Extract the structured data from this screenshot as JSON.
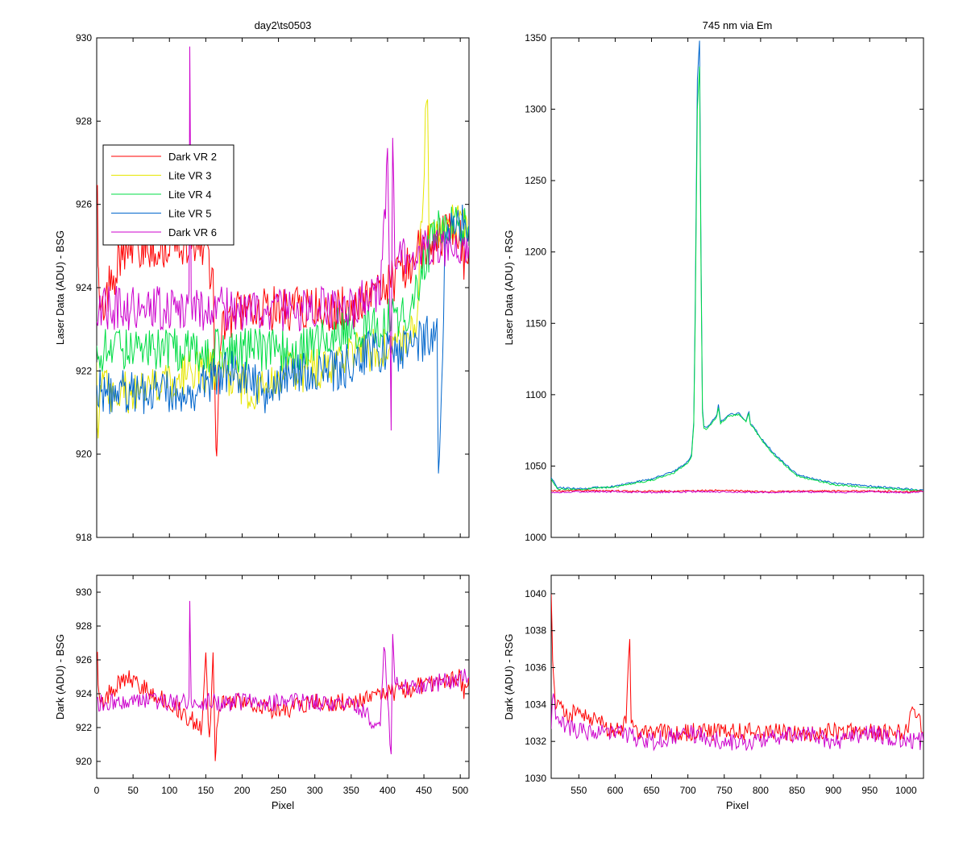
{
  "figure": {
    "colors": {
      "Dark VR 2": "#ff0000",
      "Lite VR 3": "#e6e600",
      "Lite VR 4": "#00dd44",
      "Lite VR 5": "#0066cc",
      "Dark VR 6": "#cc00cc"
    }
  },
  "chart_data": [
    {
      "id": "top-left",
      "type": "line",
      "title": "day2\\ts0503",
      "xlabel": "",
      "ylabel": "Laser Data (ADU) - BSG",
      "xlim": [
        0,
        512
      ],
      "ylim": [
        918,
        930
      ],
      "xticks": [
        0,
        50,
        100,
        150,
        200,
        250,
        300,
        350,
        400,
        450,
        500
      ],
      "show_xticklabels": false,
      "yticks": [
        918,
        920,
        922,
        924,
        926,
        928,
        930
      ],
      "legend": {
        "placement": "upper-left",
        "entries": [
          "Dark VR 2",
          "Lite VR 3",
          "Lite VR 4",
          "Lite VR 5",
          "Dark VR 6"
        ]
      },
      "series": [
        {
          "name": "Dark VR 2",
          "x": [
            0,
            2,
            3,
            5,
            40,
            100,
            150,
            160,
            163,
            165,
            170,
            200,
            250,
            300,
            350,
            400,
            450,
            460,
            500,
            505,
            512
          ],
          "y": [
            927,
            925,
            924,
            923.5,
            925,
            925,
            925,
            924,
            921,
            920,
            923,
            923.5,
            923.5,
            923.5,
            923.5,
            924,
            925,
            925,
            925.5,
            924.5,
            925
          ]
        },
        {
          "name": "Lite VR 3",
          "x": [
            0,
            2,
            5,
            30,
            80,
            130,
            170,
            220,
            260,
            300,
            350,
            400,
            440,
            455,
            457,
            480,
            512
          ],
          "y": [
            922,
            920,
            921.5,
            921.5,
            921.5,
            922,
            922,
            921.5,
            922,
            922,
            922.5,
            922.5,
            923,
            929,
            925,
            925.5,
            925.5
          ]
        },
        {
          "name": "Lite VR 4",
          "x": [
            0,
            30,
            80,
            130,
            180,
            230,
            280,
            330,
            380,
            430,
            470,
            512
          ],
          "y": [
            922.5,
            922.5,
            922.5,
            922.5,
            922.5,
            922.5,
            922.5,
            923,
            923,
            923.5,
            925.5,
            925.5
          ]
        },
        {
          "name": "Lite VR 5",
          "x": [
            0,
            30,
            80,
            130,
            180,
            230,
            280,
            330,
            380,
            430,
            468,
            470,
            480,
            512
          ],
          "y": [
            921.5,
            921.5,
            921.5,
            921.5,
            922,
            921.5,
            922,
            922,
            922.5,
            922.5,
            923,
            919,
            925.5,
            925.5
          ]
        },
        {
          "name": "Dark VR 6",
          "x": [
            0,
            50,
            100,
            127,
            128,
            130,
            200,
            250,
            300,
            350,
            390,
            400,
            405,
            407,
            410,
            450,
            512
          ],
          "y": [
            923.5,
            923.5,
            923.5,
            923.5,
            930,
            923.5,
            923.5,
            923.5,
            923.5,
            923.5,
            924,
            927,
            921,
            928,
            924.5,
            925,
            925
          ]
        }
      ]
    },
    {
      "id": "top-right",
      "type": "line",
      "title": "745 nm via Em",
      "xlabel": "",
      "ylabel": "Laser Data (ADU) - RSG",
      "xlim": [
        512,
        1024
      ],
      "ylim": [
        1000,
        1350
      ],
      "xticks": [
        550,
        600,
        650,
        700,
        750,
        800,
        850,
        900,
        950,
        1000
      ],
      "show_xticklabels": false,
      "yticks": [
        1000,
        1050,
        1100,
        1150,
        1200,
        1250,
        1300,
        1350
      ],
      "series": [
        {
          "name": "Lite VR 5",
          "x": [
            512,
            520,
            550,
            600,
            650,
            680,
            700,
            705,
            708,
            710,
            713,
            716,
            718,
            720,
            722,
            725,
            730,
            740,
            742,
            745,
            750,
            755,
            770,
            775,
            780,
            784,
            786,
            790,
            800,
            820,
            850,
            900,
            950,
            1000,
            1024
          ],
          "y": [
            1042,
            1035,
            1034,
            1036,
            1041,
            1046,
            1053,
            1058,
            1080,
            1160,
            1320,
            1348,
            1200,
            1090,
            1078,
            1077,
            1079,
            1086,
            1093,
            1081,
            1083,
            1086,
            1087,
            1084,
            1082,
            1088,
            1080,
            1078,
            1070,
            1058,
            1044,
            1038,
            1036,
            1034,
            1033
          ]
        },
        {
          "name": "Lite VR 4",
          "x": [
            512,
            520,
            550,
            600,
            650,
            680,
            700,
            705,
            708,
            710,
            713,
            716,
            718,
            720,
            722,
            725,
            730,
            740,
            742,
            745,
            750,
            755,
            770,
            775,
            780,
            784,
            786,
            790,
            800,
            820,
            850,
            900,
            950,
            1000,
            1024
          ],
          "y": [
            1041,
            1034,
            1033.5,
            1035.5,
            1040,
            1045,
            1052,
            1057,
            1078,
            1150,
            1300,
            1330,
            1190,
            1088,
            1077,
            1076,
            1078,
            1085,
            1091,
            1080,
            1082,
            1085,
            1086,
            1083,
            1081,
            1087,
            1079,
            1077,
            1069,
            1057,
            1043,
            1037,
            1035,
            1033.5,
            1032.5
          ]
        },
        {
          "name": "Dark VR 2",
          "x": [
            512,
            520,
            550,
            600,
            650,
            700,
            750,
            800,
            850,
            900,
            950,
            1000,
            1024
          ],
          "y": [
            1033,
            1032.5,
            1033,
            1032.5,
            1032.5,
            1032.5,
            1033,
            1032,
            1032.5,
            1032.5,
            1032.5,
            1032,
            1032.5
          ]
        },
        {
          "name": "Dark VR 6",
          "x": [
            512,
            520,
            550,
            600,
            650,
            700,
            750,
            800,
            850,
            900,
            950,
            1000,
            1024
          ],
          "y": [
            1032,
            1031.5,
            1032,
            1032,
            1031.5,
            1032,
            1032,
            1031.5,
            1032,
            1031.5,
            1032,
            1031.5,
            1032
          ]
        }
      ]
    },
    {
      "id": "bottom-left",
      "type": "line",
      "title": "",
      "xlabel": "Pixel",
      "ylabel": "Dark (ADU) - BSG",
      "xlim": [
        0,
        512
      ],
      "ylim": [
        919,
        931
      ],
      "xticks": [
        0,
        50,
        100,
        150,
        200,
        250,
        300,
        350,
        400,
        450,
        500
      ],
      "show_xticklabels": true,
      "yticks": [
        920,
        922,
        924,
        926,
        928,
        930
      ],
      "series": [
        {
          "name": "Dark VR 2",
          "x": [
            0,
            2,
            5,
            40,
            100,
            145,
            150,
            155,
            160,
            163,
            165,
            170,
            200,
            250,
            300,
            350,
            400,
            450,
            500,
            505,
            512
          ],
          "y": [
            927,
            925,
            923.5,
            925,
            923.5,
            922,
            926,
            921,
            926,
            920,
            922,
            923.5,
            923.5,
            923,
            923.5,
            923.5,
            924,
            924.5,
            925,
            924,
            925
          ]
        },
        {
          "name": "Dark VR 6",
          "x": [
            0,
            50,
            100,
            127,
            128,
            130,
            200,
            250,
            300,
            350,
            390,
            395,
            400,
            405,
            407,
            410,
            450,
            512
          ],
          "y": [
            923.5,
            923.5,
            923.5,
            923.5,
            930,
            923.5,
            923.5,
            923.5,
            923.5,
            923.5,
            922,
            927,
            924,
            920,
            928,
            924.5,
            924.5,
            925
          ]
        }
      ]
    },
    {
      "id": "bottom-right",
      "type": "line",
      "title": "",
      "xlabel": "Pixel",
      "ylabel": "Dark (ADU) - RSG",
      "xlim": [
        512,
        1024
      ],
      "ylim": [
        1030,
        1041
      ],
      "xticks": [
        550,
        600,
        650,
        700,
        750,
        800,
        850,
        900,
        950,
        1000
      ],
      "show_xticklabels": true,
      "yticks": [
        1030,
        1032,
        1034,
        1036,
        1038,
        1040
      ],
      "series": [
        {
          "name": "Dark VR 2",
          "x": [
            512,
            514,
            518,
            530,
            550,
            580,
            600,
            615,
            620,
            622,
            630,
            650,
            700,
            750,
            800,
            850,
            900,
            950,
            1000,
            1010,
            1024
          ],
          "y": [
            1040,
            1036,
            1034,
            1033.5,
            1033.5,
            1033,
            1032.5,
            1033,
            1038,
            1033,
            1032.5,
            1032.5,
            1032.5,
            1032.5,
            1032.5,
            1032.5,
            1032.5,
            1032.5,
            1032.5,
            1034,
            1032.5
          ]
        },
        {
          "name": "Dark VR 6",
          "x": [
            512,
            515,
            520,
            550,
            600,
            650,
            700,
            750,
            800,
            850,
            900,
            950,
            1000,
            1024
          ],
          "y": [
            1033,
            1035,
            1033,
            1032.5,
            1032.5,
            1032,
            1032.5,
            1032,
            1032,
            1032.5,
            1032,
            1032.5,
            1032,
            1032
          ]
        }
      ]
    }
  ]
}
